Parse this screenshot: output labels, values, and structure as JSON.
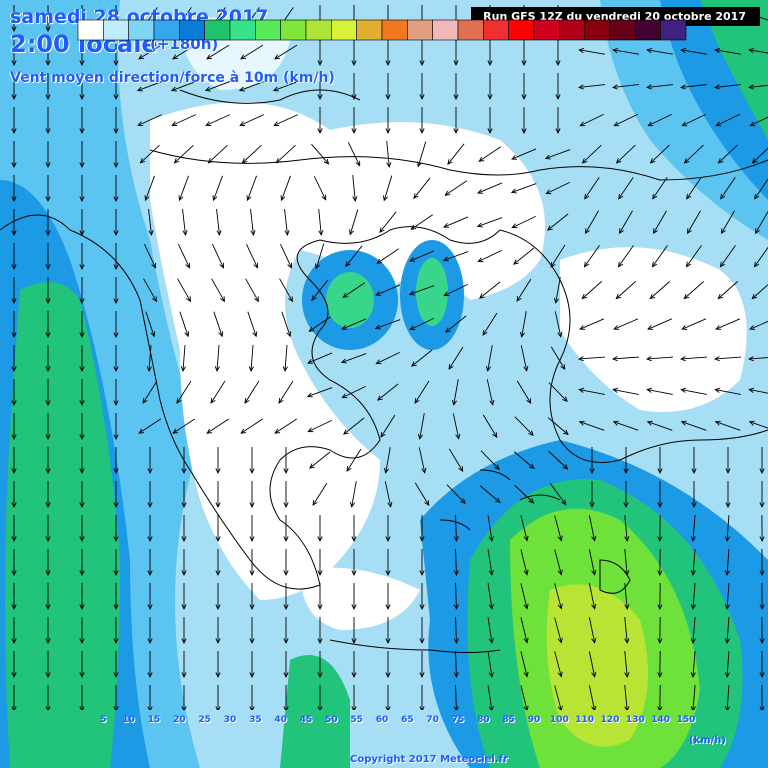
{
  "header": {
    "date": "samedi 28 octobre 2017",
    "time": "2:00 locale",
    "lead": "(+180h)",
    "variable": "Vent moyen direction/force à 10m (km/h)",
    "run": "Run GFS 12Z du vendredi 20 octobre 2017"
  },
  "legend": {
    "unit": "(km/h)",
    "ticks": [
      "5",
      "10",
      "15",
      "20",
      "25",
      "30",
      "35",
      "40",
      "45",
      "50",
      "55",
      "60",
      "65",
      "70",
      "75",
      "80",
      "85",
      "90",
      "100",
      "110",
      "120",
      "130",
      "140",
      "150"
    ],
    "colors": [
      "#ffffff",
      "#bfecfb",
      "#7fd6f4",
      "#35a7ee",
      "#0b7bd8",
      "#1fc36e",
      "#38e28a",
      "#58ea5a",
      "#7ee63a",
      "#aee43a",
      "#d8f23a",
      "#e0b030",
      "#f07820",
      "#e0a080",
      "#f0b8b8",
      "#e07050",
      "#ee3030",
      "#ff0000",
      "#d00020",
      "#b00018",
      "#8a0010",
      "#660018",
      "#440030",
      "#402080"
    ]
  },
  "copyright": "Copyright 2017 Meteociel.fr",
  "icons": [
    "wind-arrow-icon"
  ]
}
